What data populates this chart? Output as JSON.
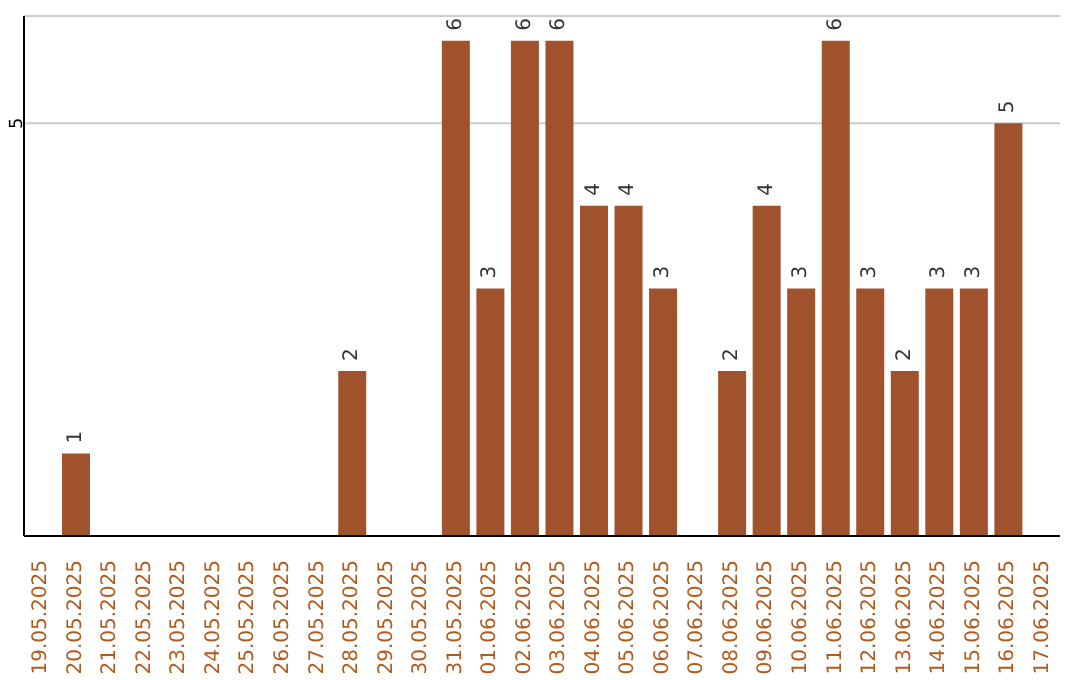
{
  "chart_data": {
    "type": "bar",
    "categories": [
      "19.05.2025",
      "20.05.2025",
      "21.05.2025",
      "22.05.2025",
      "23.05.2025",
      "24.05.2025",
      "25.05.2025",
      "26.05.2025",
      "27.05.2025",
      "28.05.2025",
      "29.05.2025",
      "30.05.2025",
      "31.05.2025",
      "01.06.2025",
      "02.06.2025",
      "03.06.2025",
      "04.06.2025",
      "05.06.2025",
      "06.06.2025",
      "07.06.2025",
      "08.06.2025",
      "09.06.2025",
      "10.06.2025",
      "11.06.2025",
      "12.06.2025",
      "13.06.2025",
      "14.06.2025",
      "15.06.2025",
      "16.06.2025",
      "17.06.2025"
    ],
    "values": [
      null,
      1,
      null,
      null,
      null,
      null,
      null,
      null,
      null,
      2,
      null,
      null,
      6,
      3,
      6,
      6,
      4,
      4,
      3,
      null,
      2,
      4,
      3,
      6,
      3,
      2,
      3,
      3,
      5,
      null
    ],
    "color": "#a0522d",
    "ylim": [
      0,
      6.3
    ],
    "yticks": [
      5
    ],
    "grid": "y",
    "data_labels": true
  }
}
